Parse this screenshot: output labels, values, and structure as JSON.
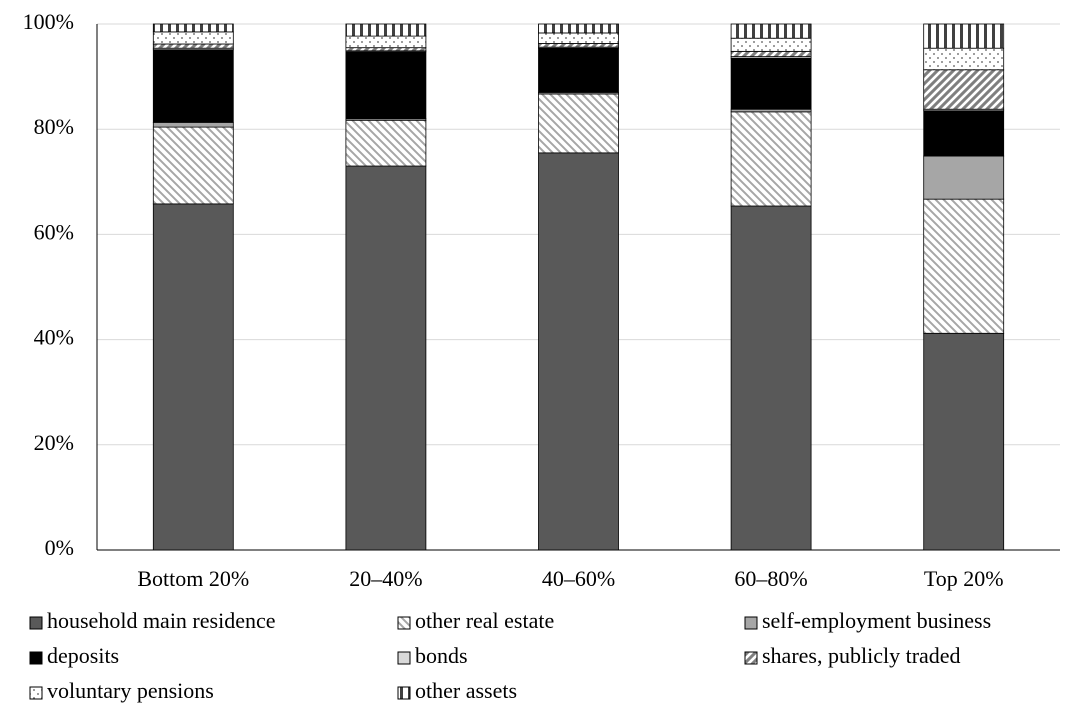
{
  "chart_data": {
    "type": "stacked-bar",
    "categories": [
      "Bottom 20%",
      "20–40%",
      "40–60%",
      "60–80%",
      "Top 20%"
    ],
    "ylim": [
      0,
      100
    ],
    "yticks": [
      {
        "value": 0,
        "label": "0%"
      },
      {
        "value": 20,
        "label": "20%"
      },
      {
        "value": 40,
        "label": "40%"
      },
      {
        "value": 60,
        "label": "60%"
      },
      {
        "value": 80,
        "label": "80%"
      },
      {
        "value": 100,
        "label": "100%"
      }
    ],
    "grid": true,
    "legend": "bottom",
    "series": [
      {
        "name": "household main residence",
        "color": "#595959",
        "pattern": "solid",
        "values": [
          65.8,
          73.0,
          75.5,
          65.4,
          41.2
        ]
      },
      {
        "name": "other real estate",
        "color": "#a6a6a6",
        "pattern": "diag-down",
        "values": [
          14.6,
          8.7,
          11.2,
          17.9,
          25.5
        ]
      },
      {
        "name": "self-employment business",
        "color": "#a6a6a6",
        "pattern": "solid",
        "values": [
          0.9,
          0.3,
          0.3,
          0.5,
          8.2
        ]
      },
      {
        "name": "deposits",
        "color": "#000000",
        "pattern": "solid",
        "values": [
          13.8,
          12.7,
          8.4,
          9.7,
          8.6
        ]
      },
      {
        "name": "bonds",
        "color": "#d9d9d9",
        "pattern": "solid",
        "values": [
          0.3,
          0.2,
          0.2,
          0.3,
          0.3
        ]
      },
      {
        "name": "shares, publicly traded",
        "color": "#7f7f7f",
        "pattern": "diag-up",
        "values": [
          0.8,
          0.6,
          0.7,
          1.0,
          7.5
        ]
      },
      {
        "name": "voluntary pensions",
        "color": "#595959",
        "pattern": "dots",
        "values": [
          2.3,
          2.2,
          2.0,
          2.5,
          4.1
        ]
      },
      {
        "name": "other assets",
        "color": "#404040",
        "pattern": "vertical",
        "values": [
          1.5,
          2.3,
          1.7,
          2.7,
          4.6
        ]
      }
    ]
  }
}
